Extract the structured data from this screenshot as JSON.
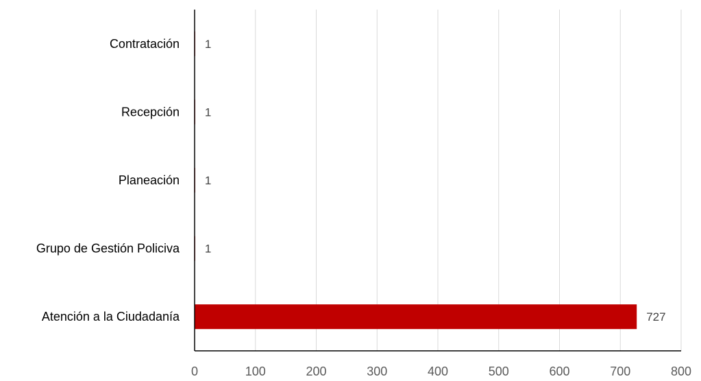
{
  "chart_data": {
    "type": "bar",
    "orientation": "horizontal",
    "categories": [
      "Atención a la Ciudadanía",
      "Grupo de Gestión Policiva",
      "Planeación",
      "Recepción",
      "Contratación"
    ],
    "values": [
      727,
      1,
      1,
      1,
      1
    ],
    "data_labels": [
      "727",
      "1",
      "1",
      "1",
      "1"
    ],
    "xlim": [
      0,
      800
    ],
    "x_ticks": [
      0,
      100,
      200,
      300,
      400,
      500,
      600,
      700,
      800
    ],
    "x_tick_labels": [
      "0",
      "100",
      "200",
      "300",
      "400",
      "500",
      "600",
      "700",
      "800"
    ],
    "grid": true,
    "legend": "none",
    "bar_color": "#C00000",
    "title": "",
    "xlabel": "",
    "ylabel": ""
  }
}
